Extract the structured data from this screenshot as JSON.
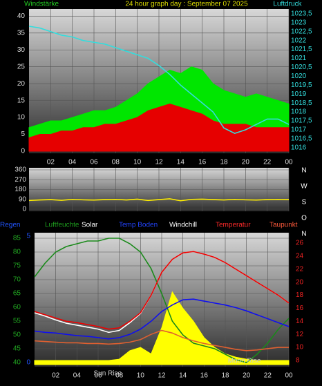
{
  "chart_data": [
    {
      "type": "line",
      "title": "24 hour graph day : September 07 2025",
      "ylabel": "Windstärke",
      "y2label": "Luftdruck",
      "x": [
        0,
        1,
        2,
        3,
        4,
        5,
        6,
        7,
        8,
        9,
        10,
        11,
        12,
        13,
        14,
        15,
        16,
        17,
        18,
        19,
        20,
        21,
        22,
        23,
        24
      ],
      "xlim": [
        0,
        24
      ],
      "xticks": [
        {
          "value": 2,
          "label": "02"
        },
        {
          "value": 4,
          "label": "04"
        },
        {
          "value": 6,
          "label": "06"
        },
        {
          "value": 8,
          "label": "08"
        },
        10,
        12,
        14,
        16,
        18,
        20,
        22,
        {
          "value": 24,
          "label": "00"
        }
      ],
      "ylim": [
        0,
        41.5
      ],
      "yticks": [
        0,
        5,
        10,
        15,
        20,
        25,
        30,
        35,
        40
      ],
      "y2lim": [
        1015.8,
        1023.65
      ],
      "y2ticks": [
        1016,
        {
          "value": 1016.5,
          "label": "1016,5"
        },
        1017,
        {
          "value": 1017.5,
          "label": "1017,5"
        },
        1018,
        {
          "value": 1018.5,
          "label": "1018,5"
        },
        1019,
        {
          "value": 1019.5,
          "label": "1019,5"
        },
        1020,
        {
          "value": 1020.5,
          "label": "1020,5"
        },
        1021,
        {
          "value": 1021.5,
          "label": "1021,5"
        },
        1022,
        {
          "value": 1022.5,
          "label": "1022,5"
        },
        1023,
        {
          "value": 1023.5,
          "label": "1023,5"
        }
      ],
      "grid": true,
      "series": [
        {
          "color": "#00e600",
          "area": true,
          "values": [
            7,
            8,
            9,
            9,
            10,
            11,
            12,
            12,
            13,
            15,
            17,
            20,
            22,
            24,
            23,
            25,
            24,
            20,
            18,
            17,
            16,
            17,
            16,
            15,
            14
          ]
        },
        {
          "color": "#e60000",
          "area": true,
          "values": [
            4,
            5,
            5,
            6,
            6,
            7,
            7,
            8,
            8,
            9,
            10,
            12,
            13,
            14,
            13,
            12,
            11,
            9,
            8,
            8,
            8,
            7,
            7,
            7,
            7
          ]
        },
        {
          "color": "#33dddd",
          "axis": "y2",
          "values": [
            1022.8,
            1022.7,
            1022.5,
            1022.3,
            1022.2,
            1022.0,
            1021.9,
            1021.8,
            1021.6,
            1021.4,
            1021.2,
            1021.0,
            1020.6,
            1020.1,
            1019.5,
            1019.0,
            1018.5,
            1018.0,
            1017.1,
            1016.8,
            1017.0,
            1017.3,
            1017.6,
            1017.6,
            1017.3
          ]
        }
      ]
    },
    {
      "type": "line",
      "compass": [
        "N",
        "W",
        "S",
        "O",
        "N"
      ],
      "x": [
        0,
        1,
        2,
        3,
        4,
        5,
        6,
        7,
        8,
        9,
        10,
        11,
        12,
        13,
        14,
        15,
        16,
        17,
        18,
        19,
        20,
        21,
        22,
        23,
        24
      ],
      "xlim": [
        0,
        24
      ],
      "xticks": [
        {
          "value": 2,
          "label": "02"
        },
        {
          "value": 4,
          "label": "04"
        },
        {
          "value": 6,
          "label": "06"
        },
        {
          "value": 8,
          "label": "08"
        },
        10,
        12,
        14,
        16,
        18,
        20,
        22,
        {
          "value": 24,
          "label": "00"
        }
      ],
      "ylim": [
        0,
        360
      ],
      "yticks": [
        0,
        90,
        180,
        270,
        360
      ],
      "grid": true,
      "series": [
        {
          "color": "#ffee00",
          "values": [
            80,
            85,
            88,
            82,
            90,
            86,
            84,
            88,
            90,
            85,
            92,
            80,
            88,
            95,
            78,
            90,
            92,
            88,
            85,
            90,
            86,
            84,
            88,
            90,
            88
          ]
        }
      ]
    },
    {
      "type": "line",
      "y3label": "Regen",
      "x": [
        0,
        1,
        2,
        3,
        4,
        5,
        6,
        7,
        8,
        9,
        10,
        11,
        12,
        13,
        14,
        15,
        16,
        17,
        18,
        19,
        20,
        21,
        22,
        23,
        24
      ],
      "xlim": [
        0,
        24
      ],
      "xticks": [
        {
          "value": 2,
          "label": "02"
        },
        {
          "value": 4,
          "label": "04"
        },
        {
          "value": 6,
          "label": "06"
        },
        {
          "value": 8,
          "label": "08"
        },
        10,
        12,
        14,
        16,
        18,
        20,
        22,
        {
          "value": 24,
          "label": "00"
        }
      ],
      "ylim": [
        39.25,
        86.25
      ],
      "yticks": [
        40,
        45,
        50,
        55,
        60,
        65,
        70,
        75,
        80,
        85
      ],
      "y2lim": [
        7.36,
        27.27
      ],
      "y2ticks": [
        8,
        10,
        12,
        14,
        16,
        18,
        20,
        22,
        24,
        26
      ],
      "y3lim": [
        -0.08,
        5.05
      ],
      "y3ticks": [
        0,
        5
      ],
      "grid": true,
      "annotations": [
        {
          "text": "Sun Rise",
          "x": 6.9
        },
        {
          "text": "Moon Rise",
          "x": 19.8
        }
      ],
      "series": [
        {
          "name": "Luftfeuchte",
          "color": "#1a8a1a",
          "values": [
            71,
            76,
            80,
            82,
            83,
            84,
            84,
            85,
            85,
            83,
            80,
            74,
            65,
            55,
            50,
            47,
            46,
            45,
            43,
            41,
            40,
            43,
            47,
            52,
            56
          ]
        },
        {
          "name": "Solar",
          "color": "#ffff00",
          "axis": "y2",
          "area": true,
          "values": [
            8,
            8,
            8,
            8,
            8,
            8,
            8,
            8,
            8.2,
            9.5,
            10,
            9,
            13,
            18.5,
            16,
            14,
            11.5,
            10,
            9,
            8.5,
            8.2,
            8,
            8,
            8,
            8
          ]
        },
        {
          "name": "Temp Boden",
          "color": "#1010ee",
          "axis": "y2",
          "values": [
            12.5,
            12.3,
            12.2,
            12,
            11.8,
            11.7,
            11.5,
            11.3,
            11.5,
            12,
            12.8,
            14,
            15.5,
            16.5,
            17.3,
            17.4,
            17.1,
            16.8,
            16.5,
            16.1,
            15.6,
            15,
            14.4,
            13.8,
            13.2
          ]
        },
        {
          "name": "Windchill",
          "color": "#ffffff",
          "axis": "y2",
          "values": [
            15.3,
            14.8,
            14.2,
            13.7,
            13.4,
            13.1,
            12.8,
            12.3,
            12.6,
            13.8,
            15.2,
            18,
            21.5,
            23.5,
            24.5,
            24.7,
            24.3,
            23.8,
            23,
            22,
            21,
            20,
            19,
            18,
            16.8
          ]
        },
        {
          "name": "Temperatur",
          "color": "#ee0000",
          "axis": "y2",
          "values": [
            15.5,
            15,
            14.5,
            14,
            13.8,
            13.5,
            13.2,
            12.8,
            13,
            14,
            15.3,
            18,
            21.5,
            23.5,
            24.5,
            24.7,
            24.3,
            23.8,
            23,
            22,
            21,
            20,
            19,
            18,
            16.8
          ]
        },
        {
          "name": "Taupunkt",
          "color": "#e06030",
          "axis": "y2",
          "values": [
            11,
            10.9,
            10.8,
            10.7,
            10.7,
            10.6,
            10.6,
            10.5,
            10.6,
            10.8,
            11.2,
            12,
            12.6,
            12.2,
            11.5,
            11,
            10.6,
            10.3,
            10,
            9.7,
            9.5,
            9.6,
            9.8,
            10,
            10
          ]
        }
      ]
    }
  ]
}
